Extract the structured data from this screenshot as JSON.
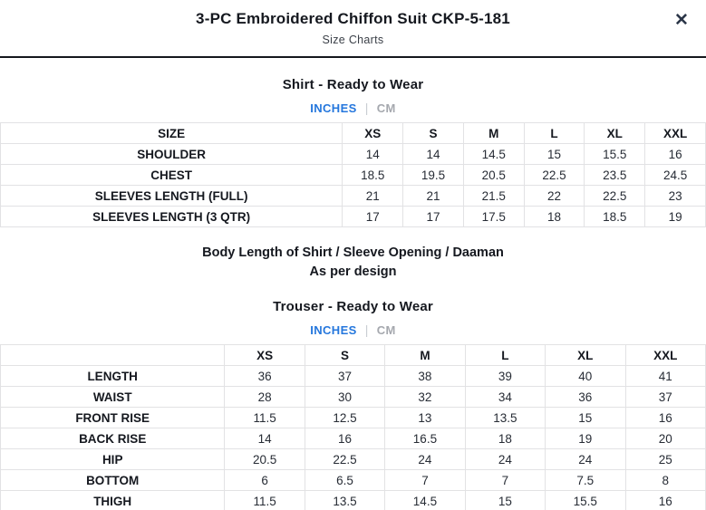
{
  "modal": {
    "title": "3-PC Embroidered Chiffon Suit CKP-5-181",
    "subtitle": "Size Charts",
    "close_icon": "✕"
  },
  "colors": {
    "accent_blue": "#2577dd",
    "inactive_gray": "#a5a8ae",
    "divider_black": "#14171d",
    "table_border": "#e2e2e4"
  },
  "shirt_section": {
    "heading": "Shirt - Ready to Wear",
    "units": {
      "active": "INCHES",
      "separator": "|",
      "inactive": "CM"
    },
    "table": {
      "header": [
        "SIZE",
        "XS",
        "S",
        "M",
        "L",
        "XL",
        "XXL"
      ],
      "rows": [
        {
          "label": "SHOULDER",
          "values": [
            "14",
            "14",
            "14.5",
            "15",
            "15.5",
            "16"
          ]
        },
        {
          "label": "CHEST",
          "values": [
            "18.5",
            "19.5",
            "20.5",
            "22.5",
            "23.5",
            "24.5"
          ]
        },
        {
          "label": "SLEEVES LENGTH (FULL)",
          "values": [
            "21",
            "21",
            "21.5",
            "22",
            "22.5",
            "23"
          ]
        },
        {
          "label": "SLEEVES LENGTH (3 QTR)",
          "values": [
            "17",
            "17",
            "17.5",
            "18",
            "18.5",
            "19"
          ]
        }
      ]
    }
  },
  "note": {
    "line1": "Body Length of Shirt / Sleeve Opening / Daaman",
    "line2": "As per design"
  },
  "trouser_section": {
    "heading": "Trouser - Ready to Wear",
    "units": {
      "active": "INCHES",
      "separator": "|",
      "inactive": "CM"
    },
    "table": {
      "header": [
        "",
        "XS",
        "S",
        "M",
        "L",
        "XL",
        "XXL"
      ],
      "rows": [
        {
          "label": "LENGTH",
          "values": [
            "36",
            "37",
            "38",
            "39",
            "40",
            "41"
          ]
        },
        {
          "label": "WAIST",
          "values": [
            "28",
            "30",
            "32",
            "34",
            "36",
            "37"
          ]
        },
        {
          "label": "FRONT RISE",
          "values": [
            "11.5",
            "12.5",
            "13",
            "13.5",
            "15",
            "16"
          ]
        },
        {
          "label": "BACK RISE",
          "values": [
            "14",
            "16",
            "16.5",
            "18",
            "19",
            "20"
          ]
        },
        {
          "label": "HIP",
          "values": [
            "20.5",
            "22.5",
            "24",
            "24",
            "24",
            "25"
          ]
        },
        {
          "label": "BOTTOM",
          "values": [
            "6",
            "6.5",
            "7",
            "7",
            "7.5",
            "8"
          ]
        },
        {
          "label": "THIGH",
          "values": [
            "11.5",
            "13.5",
            "14.5",
            "15",
            "15.5",
            "16"
          ]
        }
      ]
    }
  }
}
